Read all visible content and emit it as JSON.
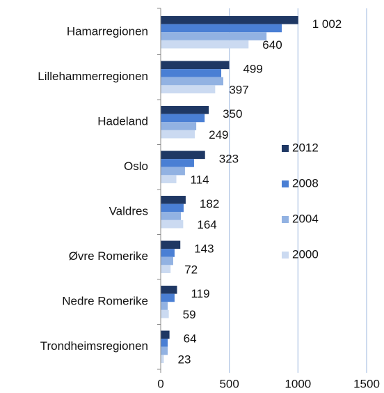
{
  "chart_data": {
    "type": "barh",
    "categories": [
      "Hamarregionen",
      "Lillehammerregionen",
      "Hadeland",
      "Oslo",
      "Valdres",
      "Øvre Romerike",
      "Nedre Romerike",
      "Trondheimsregionen"
    ],
    "series": [
      {
        "name": "2012",
        "color": "#1f3864",
        "values": [
          1002,
          499,
          350,
          323,
          182,
          143,
          119,
          64
        ],
        "value_labels": [
          "1 002",
          "499",
          "350",
          "323",
          "182",
          "143",
          "119",
          "64"
        ],
        "data_labels": true
      },
      {
        "name": "2008",
        "color": "#4a7fd4",
        "values": [
          882,
          441,
          320,
          243,
          167,
          101,
          101,
          51
        ]
      },
      {
        "name": "2004",
        "color": "#92b2e2",
        "values": [
          771,
          456,
          259,
          177,
          147,
          91,
          51,
          51
        ]
      },
      {
        "name": "2000",
        "color": "#cbdaf1",
        "values": [
          640,
          397,
          249,
          114,
          164,
          72,
          59,
          23
        ],
        "data_labels": true
      }
    ],
    "xlim": [
      0,
      1500
    ],
    "xticks": [
      0,
      500,
      1000,
      1500
    ],
    "grid": true,
    "legend": "right"
  }
}
